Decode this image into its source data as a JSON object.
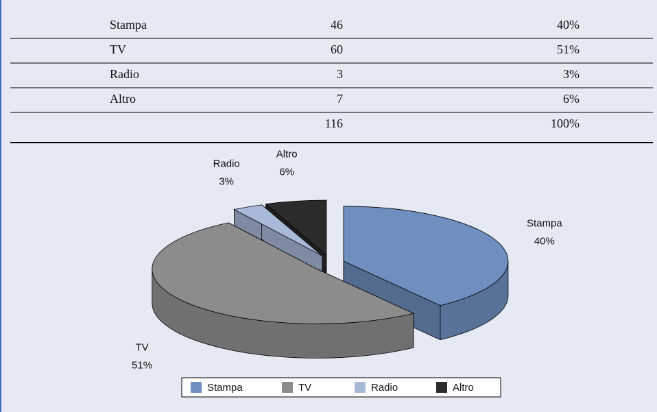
{
  "table": {
    "rows": [
      {
        "label": "Stampa",
        "count": 46,
        "share": "40%"
      },
      {
        "label": "TV",
        "count": 60,
        "share": "51%"
      },
      {
        "label": "Radio",
        "count": 3,
        "share": "3%"
      },
      {
        "label": "Altro",
        "count": 7,
        "share": "6%"
      },
      {
        "count": 116,
        "share": "100%"
      }
    ]
  },
  "chart_data": {
    "type": "pie",
    "categories": [
      "Stampa",
      "TV",
      "Radio",
      "Altro"
    ],
    "values": [
      40,
      51,
      3,
      6
    ],
    "value_labels": [
      "40%",
      "51%",
      "3%",
      "6%"
    ],
    "colors": [
      "#6f8fbf",
      "#8c8c8c",
      "#a9b9d9",
      "#2b2b2b"
    ],
    "legend": "bottom"
  }
}
